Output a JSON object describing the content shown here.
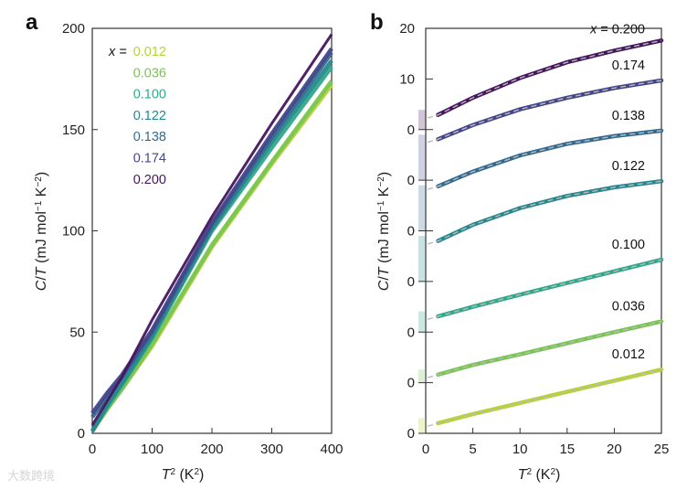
{
  "watermark": "大数跨境",
  "chart_data": [
    {
      "panel": "a",
      "type": "line",
      "xlabel": "T² (K²)",
      "ylabel": "C/T (mJ mol⁻¹ K⁻²)",
      "xlim": [
        0,
        400
      ],
      "ylim": [
        0,
        200
      ],
      "xticks": [
        "0",
        "100",
        "200",
        "300",
        "400"
      ],
      "yticks": [
        "0",
        "50",
        "100",
        "150",
        "200"
      ],
      "legend_prefix": "x =",
      "legend_position": "top-left",
      "x": [
        0,
        25,
        50,
        100,
        200,
        300,
        400
      ],
      "series": [
        {
          "name": "0.012",
          "color": "#b5d334",
          "values": [
            1,
            12,
            22,
            43,
            92,
            133,
            172
          ]
        },
        {
          "name": "0.036",
          "color": "#78c552",
          "values": [
            1,
            12,
            22,
            44,
            93,
            134,
            174
          ]
        },
        {
          "name": "0.100",
          "color": "#2fa88a",
          "values": [
            1,
            13,
            24,
            47,
            100,
            141,
            181
          ]
        },
        {
          "name": "0.122",
          "color": "#27878e",
          "values": [
            1,
            14,
            25,
            48,
            101,
            144,
            184
          ]
        },
        {
          "name": "0.138",
          "color": "#336a90",
          "values": [
            8,
            18,
            28,
            50,
            103,
            146,
            188
          ]
        },
        {
          "name": "0.174",
          "color": "#45468a",
          "values": [
            10,
            20,
            29,
            51,
            104,
            148,
            190
          ]
        },
        {
          "name": "0.200",
          "color": "#46165e",
          "values": [
            4,
            16,
            28,
            56,
            107,
            153,
            197
          ]
        }
      ]
    },
    {
      "panel": "b",
      "type": "line",
      "xlabel": "T² (K²)",
      "ylabel": "C/T (mJ mol⁻¹ K⁻²)",
      "xlim": [
        0,
        25
      ],
      "xticks": [
        "0",
        "5",
        "10",
        "15",
        "20",
        "25"
      ],
      "yticks_top": [
        "20",
        "10"
      ],
      "offset_zero_label": "0",
      "note": "curves vertically offset; each curve has its own zero tick",
      "legend_prefix": "x =",
      "x": [
        1.3,
        5,
        10,
        15,
        20,
        25
      ],
      "series": [
        {
          "name": "0.200",
          "color": "#46165e",
          "values": [
            2.9,
            6.3,
            10.2,
            13.3,
            15.6,
            17.6
          ]
        },
        {
          "name": "0.174",
          "color": "#45468a",
          "values": [
            8.1,
            10.9,
            14.0,
            16.3,
            18.2,
            19.7
          ]
        },
        {
          "name": "0.138",
          "color": "#336a90",
          "values": [
            8.8,
            11.7,
            14.9,
            17.2,
            18.7,
            19.8
          ]
        },
        {
          "name": "0.122",
          "color": "#27878e",
          "values": [
            8.0,
            11.2,
            14.5,
            16.9,
            18.6,
            19.8
          ]
        },
        {
          "name": "0.100",
          "color": "#2fa88a",
          "values": [
            3.1,
            5.0,
            7.4,
            9.7,
            12.0,
            14.3
          ]
        },
        {
          "name": "0.036",
          "color": "#78c552",
          "values": [
            1.6,
            3.5,
            5.6,
            7.8,
            10.0,
            12.1
          ]
        },
        {
          "name": "0.012",
          "color": "#b5d334",
          "values": [
            2.0,
            3.8,
            6.0,
            8.2,
            10.4,
            12.6
          ]
        }
      ]
    }
  ],
  "panel_labels": [
    "a",
    "b"
  ]
}
